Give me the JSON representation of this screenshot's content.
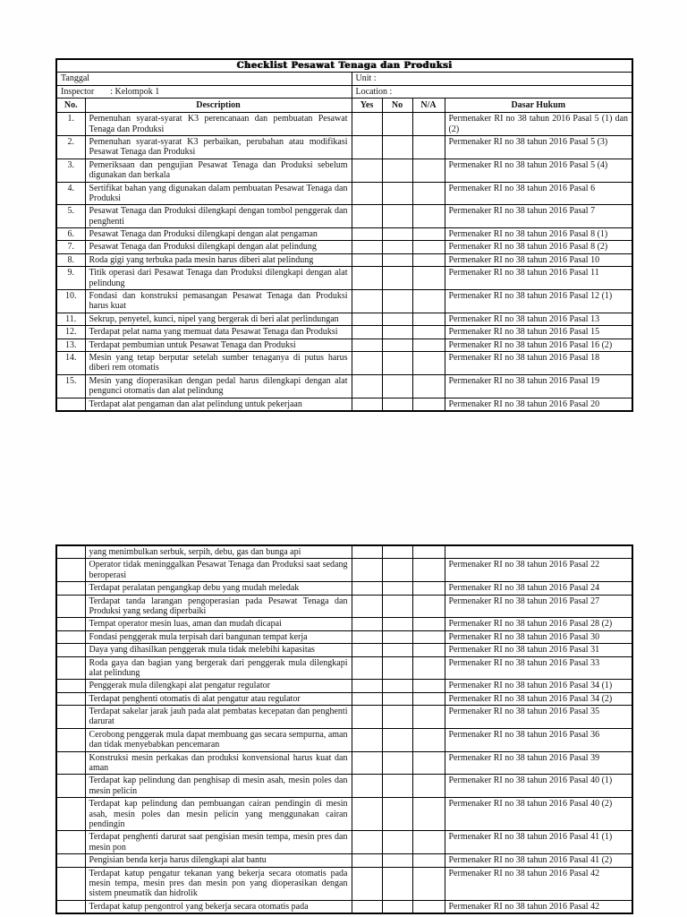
{
  "document": {
    "title": "Checklist Pesawat Tenaga dan Produksi",
    "info": {
      "tanggal_label": "Tanggal",
      "unit_label": "Unit :",
      "inspector_label": "Inspector",
      "inspector_value": ": Kelompok 1",
      "location_label": "Location :"
    },
    "headers": {
      "no": "No.",
      "description": "Description",
      "yes": "Yes",
      "not": "No",
      "na": "N/A",
      "dasar_hukum": "Dasar Hukum"
    },
    "table1": {
      "rows": [
        {
          "no": "1.",
          "desc": "Pemenuhan syarat-syarat K3 perencanaan dan pembuatan Pesawat Tenaga dan Produksi",
          "dasar": "Permenaker RI no 38 tahun 2016 Pasal 5 (1) dan (2)"
        },
        {
          "no": "2.",
          "desc": "Pemenuhan syarat-syarat K3 perbaikan, perubahan atau modifikasi Pesawat Tenaga dan Produksi",
          "dasar": "Permenaker RI no 38 tahun 2016 Pasal 5 (3)"
        },
        {
          "no": "3.",
          "desc": "Pemeriksaan dan pengujian Pesawat Tenaga dan Produksi sebelum digunakan dan berkala",
          "dasar": "Permenaker RI no 38 tahun 2016 Pasal 5 (4)"
        },
        {
          "no": "4.",
          "desc": "Sertifikat bahan yang digunakan dalam pembuatan Pesawat Tenaga dan Produksi",
          "dasar": "Permenaker RI no 38 tahun 2016 Pasal 6"
        },
        {
          "no": "5.",
          "desc": "Pesawat Tenaga dan Produksi dilengkapi dengan tombol penggerak dan penghenti",
          "dasar": "Permenaker RI no 38 tahun 2016 Pasal 7"
        },
        {
          "no": "6.",
          "desc": "Pesawat Tenaga dan Produksi dilengkapi dengan alat pengaman",
          "dasar": "Permenaker RI no 38 tahun 2016 Pasal 8 (1)"
        },
        {
          "no": "7.",
          "desc": "Pesawat Tenaga dan Produksi dilengkapi dengan alat pelindung",
          "dasar": "Permenaker RI no 38 tahun 2016 Pasal 8 (2)"
        },
        {
          "no": "8.",
          "desc": "Roda gigi yang terbuka pada mesin harus diberi alat pelindung",
          "dasar": "Permenaker RI no 38 tahun 2016 Pasal 10"
        },
        {
          "no": "9.",
          "desc": "Titik operasi dari Pesawat Tenaga dan Produksi dilengkapi dengan alat pelindung",
          "dasar": "Permenaker RI no 38 tahun 2016 Pasal 11"
        },
        {
          "no": "10.",
          "desc": "Fondasi dan konstruksi pemasangan Pesawat Tenaga dan Produksi harus kuat",
          "dasar": "Permenaker RI no 38 tahun 2016 Pasal 12 (1)"
        },
        {
          "no": "11.",
          "desc": "Sekrup, penyetel, kunci, nipel yang bergerak di beri alat perlindungan",
          "dasar": "Permenaker RI no 38 tahun 2016 Pasal 13"
        },
        {
          "no": "12.",
          "desc": "Terdapat pelat nama yang memuat data Pesawat Tenaga dan Produksi",
          "dasar": "Permenaker RI no 38 tahun 2016 Pasal 15"
        },
        {
          "no": "13.",
          "desc": "Terdapat pembumian untuk Pesawat Tenaga dan Produksi",
          "dasar": "Permenaker RI no 38 tahun 2016 Pasal 16 (2)"
        },
        {
          "no": "14.",
          "desc": "Mesin yang tetap berputar setelah sumber tenaganya di putus harus diberi rem otomatis",
          "dasar": "Permenaker RI no 38 tahun 2016 Pasal 18"
        },
        {
          "no": "15.",
          "desc": "Mesin yang dioperasikan dengan pedal harus dilengkapi dengan alat pengunci otomatis dan alat pelindung",
          "dasar": "Permenaker RI no 38 tahun 2016 Pasal 19"
        },
        {
          "no": "",
          "desc": "Terdapat alat pengaman dan alat pelindung untuk pekerjaan",
          "dasar": "Permenaker RI no 38 tahun 2016 Pasal 20"
        }
      ]
    },
    "table2": {
      "rows": [
        {
          "no": "",
          "desc": "yang menimbulkan serbuk, serpih, debu, gas dan bunga api",
          "dasar": ""
        },
        {
          "no": "",
          "desc": "Operator tidak meninggalkan Pesawat Tenaga dan Produksi saat sedang beroperasi",
          "dasar": "Permenaker RI no 38 tahun 2016 Pasal 22"
        },
        {
          "no": "",
          "desc": "Terdapat peralatan pengangkap debu yang mudah meledak",
          "dasar": "Permenaker RI no 38 tahun 2016 Pasal 24"
        },
        {
          "no": "",
          "desc": "Terdapat tanda larangan pengoperasian pada Pesawat Tenaga dan Produksi yang sedang diperbaiki",
          "dasar": "Permenaker RI no 38 tahun 2016 Pasal 27"
        },
        {
          "no": "",
          "desc": "Tempat operator mesin luas, aman dan mudah dicapai",
          "dasar": "Permenaker RI no 38 tahun 2016 Pasal 28 (2)"
        },
        {
          "no": "",
          "desc": "Fondasi penggerak mula terpisah dari bangunan tempat kerja",
          "dasar": "Permenaker RI no 38 tahun 2016 Pasal 30"
        },
        {
          "no": "",
          "desc": "Daya yang dihasilkan penggerak mula tidak melebihi kapasitas",
          "dasar": "Permenaker RI no 38 tahun 2016 Pasal 31"
        },
        {
          "no": "",
          "desc": "Roda gaya dan bagian yang bergerak dari penggerak mula dilengkapi alat pelindung",
          "dasar": "Permenaker RI no 38 tahun 2016 Pasal 33"
        },
        {
          "no": "",
          "desc": "Penggerak mula dilengkapi alat pengatur regulator",
          "dasar": "Permenaker RI no 38 tahun 2016 Pasal 34 (1)"
        },
        {
          "no": "",
          "desc": "Terdapat penghenti otomatis di alat pengatur atau regulator",
          "dasar": "Permenaker RI no 38 tahun 2016 Pasal 34 (2)"
        },
        {
          "no": "",
          "desc": "Terdapat sakelar jarak jauh pada alat pembatas kecepatan dan penghenti darurat",
          "dasar": "Permenaker RI no 38 tahun 2016 Pasal 35"
        },
        {
          "no": "",
          "desc": "Cerobong penggerak mula dapat membuang gas secara sempurna, aman dan tidak menyebabkan pencemaran",
          "dasar": "Permenaker RI no 38 tahun 2016 Pasal 36"
        },
        {
          "no": "",
          "desc": "Konstruksi mesin perkakas dan produksi konvensional harus kuat dan aman",
          "dasar": "Permenaker RI no 38 tahun 2016 Pasal 39"
        },
        {
          "no": "",
          "desc": "Terdapat kap pelindung dan penghisap di mesin asah, mesin poles dan mesin pelicin",
          "dasar": "Permenaker RI no 38 tahun 2016 Pasal 40 (1)"
        },
        {
          "no": "",
          "desc": "Terdapat kap pelindung dan pembuangan cairan pendingin di mesin asah, mesin poles dan mesin pelicin yang menggunakan cairan pendingin",
          "dasar": "Permenaker RI no 38 tahun 2016 Pasal 40 (2)"
        },
        {
          "no": "",
          "desc": "Terdapat penghenti darurat saat pengisian mesin tempa, mesin pres dan mesin pon",
          "dasar": "Permenaker RI no 38 tahun 2016 Pasal 41 (1)"
        },
        {
          "no": "",
          "desc": "Pengisian benda kerja harus dilengkapi alat bantu",
          "dasar": "Permenaker RI no 38 tahun 2016 Pasal 41 (2)"
        },
        {
          "no": "",
          "desc": "Terdapat katup pengatur tekanan yang bekerja secara otomatis pada mesin tempa, mesin pres dan mesin pon yang dioperasikan dengan sistem pneumatik dan hidrolik",
          "dasar": "Permenaker RI no 38 tahun 2016 Pasal 42"
        },
        {
          "no": "",
          "desc": "Terdapat katup pengontrol yang bekerja secara otomatis pada",
          "dasar": "Permenaker RI no 38 tahun 2016 Pasal 42"
        }
      ]
    }
  }
}
